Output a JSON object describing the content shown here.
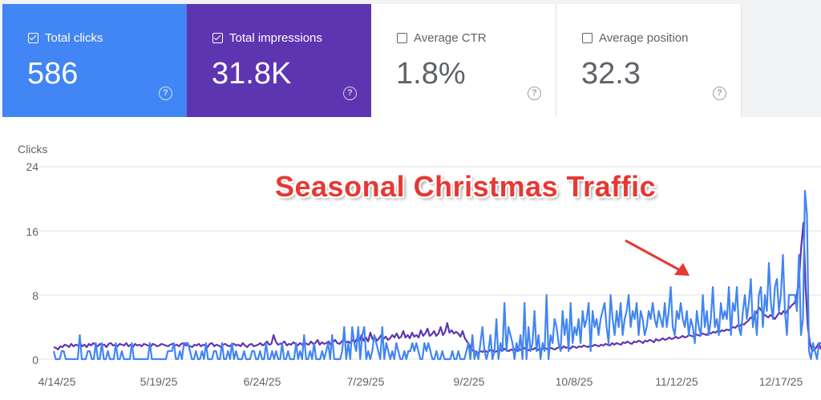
{
  "colors": {
    "clicks": "#4285f4",
    "impressions": "#5e35b1",
    "grid": "#e0e0e0",
    "annotation": "#e53935",
    "arrow": "#e53935"
  },
  "cards": [
    {
      "label": "Total clicks",
      "value": "586",
      "checked": true,
      "bg": "#4285f4",
      "fg": "#ffffff",
      "help": "?"
    },
    {
      "label": "Total impressions",
      "value": "31.8K",
      "checked": true,
      "bg": "#5e35b1",
      "fg": "#ffffff",
      "help": "?"
    },
    {
      "label": "Average CTR",
      "value": "1.8%",
      "checked": false,
      "bg": "#ffffff",
      "fg": "#5f6368",
      "help": "?"
    },
    {
      "label": "Average position",
      "value": "32.3",
      "checked": false,
      "bg": "#ffffff",
      "fg": "#5f6368",
      "help": "?"
    }
  ],
  "annotation": "Seasonal Christmas Traffic",
  "chart_data": {
    "type": "line",
    "ylabel": "Clicks",
    "ylim": [
      0,
      24
    ],
    "yticks": [
      "24",
      "16",
      "8",
      "0"
    ],
    "xticks": [
      "4/14/25",
      "5/19/25",
      "6/24/25",
      "7/29/25",
      "9/2/25",
      "10/8/25",
      "11/12/25",
      "12/17/25"
    ],
    "x_start": "4/14/25",
    "x_end": "12/25/25",
    "grid": true,
    "series": [
      {
        "name": "Total clicks",
        "color": "#4285f4",
        "values": [
          1,
          0,
          0,
          0,
          1,
          1,
          0,
          0,
          0,
          0,
          0,
          0,
          0,
          3,
          0,
          0,
          0,
          1,
          1,
          0,
          0,
          2,
          0,
          0,
          2,
          0,
          0,
          1,
          0,
          0,
          0,
          2,
          0,
          0,
          1,
          0,
          0,
          0,
          0,
          2,
          0,
          0,
          0,
          0,
          0,
          0,
          0,
          0,
          2,
          0,
          0,
          0,
          0,
          0,
          0,
          0,
          0,
          1,
          1,
          1,
          2,
          0,
          0,
          1,
          0,
          2,
          2,
          2,
          1,
          0,
          0,
          1,
          0,
          0,
          1,
          0,
          2,
          0,
          0,
          0,
          1,
          1,
          0,
          0,
          2,
          0,
          0,
          1,
          0,
          2,
          0,
          1,
          0,
          0,
          0,
          1,
          0,
          0,
          0,
          1,
          1,
          0,
          0,
          1,
          0,
          0,
          2,
          0,
          0,
          1,
          0,
          1,
          0,
          0,
          2,
          0,
          0,
          1,
          0,
          0,
          0,
          2,
          0,
          1,
          0,
          3,
          0,
          0,
          1,
          0,
          2,
          0,
          0,
          0,
          1,
          0,
          1,
          2,
          0,
          3,
          0,
          0,
          0,
          0,
          1,
          4,
          0,
          2,
          0,
          4,
          2,
          1,
          4,
          0,
          3,
          4,
          0,
          1,
          0,
          1,
          3,
          2,
          1,
          0,
          4,
          0,
          2,
          1,
          0,
          1,
          0,
          2,
          1,
          0,
          0,
          1,
          0,
          1,
          1,
          2,
          1,
          2,
          1,
          0,
          0,
          2,
          1,
          2,
          1,
          0,
          0,
          1,
          0,
          0,
          1,
          0,
          0,
          0,
          0,
          1,
          0,
          0,
          1,
          0,
          0,
          0,
          1,
          2,
          0,
          3,
          0,
          1,
          0,
          2,
          4,
          1,
          0,
          1,
          3,
          0,
          1,
          5,
          0,
          2,
          1,
          7,
          1,
          4,
          3,
          2,
          0,
          2,
          1,
          3,
          0,
          7,
          0,
          4,
          1,
          2,
          6,
          1,
          3,
          0,
          2,
          1,
          8,
          0,
          3,
          2,
          5,
          4,
          2,
          1,
          6,
          3,
          5,
          1,
          7,
          2,
          4,
          3,
          5,
          2,
          6,
          4,
          5,
          7,
          1,
          6,
          4,
          5,
          3,
          5,
          6,
          7,
          4,
          2,
          8,
          5,
          3,
          6,
          4,
          7,
          3,
          5,
          6,
          8,
          4,
          6,
          5,
          7,
          3,
          6,
          5,
          3,
          4,
          6,
          5,
          7,
          5,
          4,
          6,
          5,
          4,
          7,
          4,
          6,
          9,
          4,
          3,
          6,
          5,
          7,
          5,
          4,
          6,
          3,
          5,
          4,
          2,
          6,
          4,
          3,
          8,
          4,
          6,
          3,
          5,
          9,
          4,
          5,
          3,
          7,
          5,
          6,
          5,
          9,
          3,
          7,
          6,
          9,
          4,
          3,
          6,
          8,
          5,
          7,
          10,
          4,
          6,
          3,
          8,
          9,
          4,
          8,
          6,
          12,
          7,
          5,
          9,
          10,
          6,
          8,
          13,
          6,
          3,
          8,
          8,
          8,
          8,
          6,
          13,
          3,
          5,
          21,
          18,
          1,
          0,
          2,
          1,
          0,
          2,
          2
        ],
        "x_start_day": 0
      },
      {
        "name": "Total impressions",
        "color": "#5e35b1",
        "values": [
          1.5,
          1.4,
          1.2,
          1.6,
          1.5,
          1.8,
          1.7,
          1.5,
          1.9,
          1.6,
          1.8,
          1.7,
          2.0,
          1.6,
          1.8,
          1.5,
          1.9,
          1.7,
          2.0,
          1.8,
          1.6,
          1.9,
          1.7,
          1.8,
          1.5,
          1.9,
          2.0,
          1.7,
          1.8,
          1.6,
          1.9,
          1.8,
          1.7,
          2.0,
          1.6,
          1.8,
          1.5,
          1.9,
          1.7,
          1.8,
          1.6,
          1.9,
          1.8,
          1.7,
          1.5,
          1.9,
          1.8,
          1.6,
          1.7,
          1.9,
          1.8,
          1.7,
          1.6,
          1.8,
          1.9,
          1.7,
          1.8,
          1.6,
          1.9,
          2.0,
          1.7,
          1.8,
          1.6,
          1.5,
          1.8,
          1.7,
          1.9,
          1.6,
          1.8,
          1.7,
          1.5,
          1.9,
          2.0,
          1.6,
          1.8,
          1.7,
          1.5,
          1.8,
          1.9,
          1.7,
          1.6,
          1.8,
          1.9,
          1.7,
          1.8,
          1.6,
          2.0,
          1.7,
          1.5,
          1.8,
          1.9,
          1.6,
          1.7,
          1.8,
          2.0,
          1.7,
          1.9,
          2.2,
          1.8,
          1.9,
          3.0,
          2.2,
          1.8,
          1.9,
          2.0,
          2.2,
          1.7,
          1.9,
          1.8,
          2.1,
          1.9,
          1.7,
          2.0,
          1.8,
          2.1,
          1.9,
          1.8,
          2.2,
          1.9,
          2.0,
          2.4,
          1.8,
          2.1,
          1.9,
          2.0,
          2.2,
          1.8,
          2.1,
          2.4,
          2.0,
          1.9,
          2.2,
          2.5,
          2.1,
          2.2,
          2.0,
          2.4,
          2.1,
          2.6,
          2.2,
          3.0,
          2.3,
          2.7,
          2.2,
          3.3,
          2.5,
          2.8,
          2.3,
          2.6,
          3.0,
          2.5,
          2.8,
          2.4,
          2.6,
          3.0,
          2.7,
          3.2,
          2.6,
          2.8,
          3.5,
          2.7,
          3.0,
          2.6,
          3.3,
          2.8,
          3.0,
          2.7,
          3.6,
          2.9,
          3.2,
          3.8,
          2.9,
          3.1,
          3.5,
          2.9,
          3.2,
          4.0,
          3.0,
          3.4,
          4.5,
          3.3,
          3.6,
          3.2,
          3.4,
          3.2,
          2.8,
          3.5,
          2.6,
          2.2,
          1.8,
          1.2,
          1.0,
          0.9,
          0.8,
          1.0,
          0.9,
          1.1,
          0.9,
          1.0,
          1.2,
          1.0,
          0.9,
          1.1,
          1.2,
          1.0,
          1.3,
          1.1,
          1.0,
          1.2,
          1.1,
          1.3,
          1.0,
          1.2,
          1.1,
          1.4,
          1.2,
          1.1,
          1.3,
          1.2,
          1.4,
          1.1,
          1.3,
          1.2,
          1.5,
          1.3,
          1.2,
          1.4,
          1.3,
          1.2,
          1.4,
          1.5,
          1.3,
          1.6,
          1.4,
          1.5,
          1.3,
          1.6,
          1.5,
          1.4,
          1.6,
          1.5,
          1.7,
          1.6,
          1.5,
          1.7,
          1.6,
          1.8,
          1.7,
          1.6,
          1.8,
          1.7,
          1.9,
          1.8,
          1.7,
          2.0,
          1.8,
          2.0,
          1.9,
          1.8,
          2.1,
          2.0,
          2.2,
          2.0,
          1.9,
          2.2,
          2.1,
          2.3,
          2.2,
          2.0,
          2.3,
          2.2,
          2.4,
          2.3,
          2.1,
          2.5,
          2.3,
          2.4,
          2.6,
          2.4,
          2.5,
          2.7,
          2.5,
          2.6,
          2.8,
          2.6,
          2.7,
          2.9,
          2.7,
          2.8,
          3.0,
          2.9,
          2.8,
          3.1,
          3.0,
          2.9,
          3.2,
          3.1,
          3.0,
          3.3,
          3.2,
          3.4,
          3.3,
          3.5,
          3.4,
          3.6,
          3.5,
          3.7,
          3.6,
          3.8,
          4.0,
          3.9,
          4.2,
          4.1,
          4.4,
          4.3,
          4.6,
          4.8,
          5.2,
          5.0,
          5.5,
          6.0,
          6.4,
          6.0,
          5.6,
          5.4,
          5.2,
          5.5,
          5.3,
          5.0,
          5.4,
          5.8,
          5.6,
          6.0,
          5.7,
          6.2,
          6.5,
          6.8,
          7.0,
          8.0,
          10.0,
          14.0,
          17.0,
          9.0,
          4.0,
          2.0,
          1.0,
          1.2,
          1.5,
          2.0,
          1.2
        ],
        "x_start_day": 0
      }
    ]
  }
}
